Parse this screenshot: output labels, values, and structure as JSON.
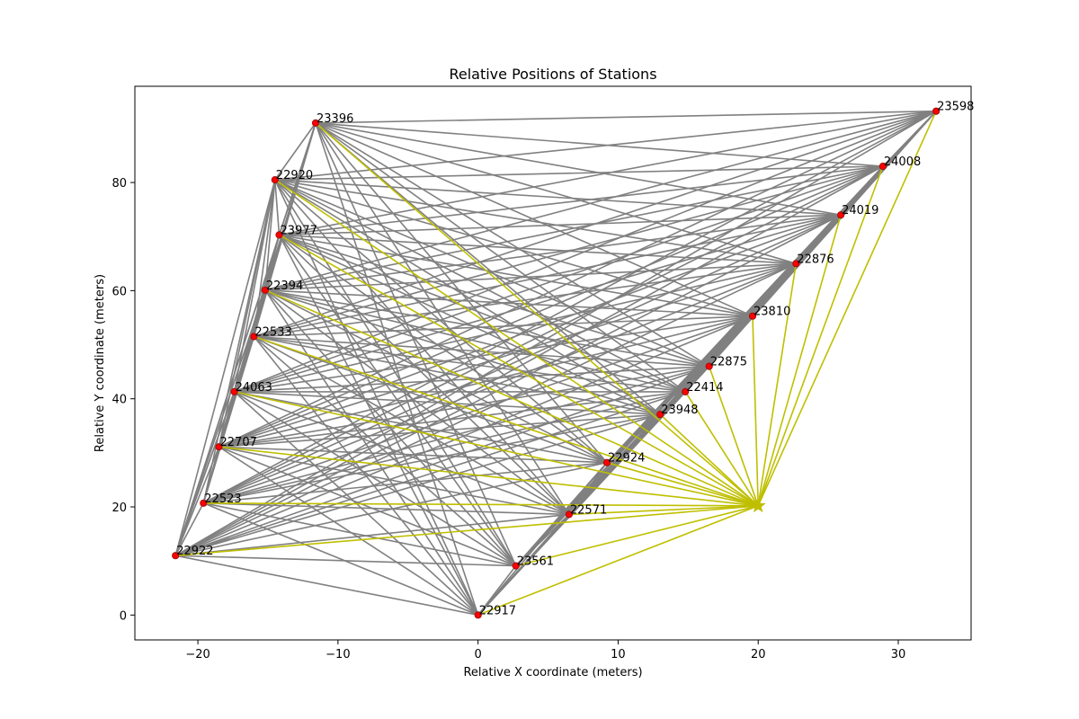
{
  "chart_data": {
    "type": "scatter",
    "title": "Relative Positions of Stations",
    "xlabel": "Relative X coordinate (meters)",
    "ylabel": "Relative Y coordinate (meters)",
    "xlim": [
      -24.5,
      35.2
    ],
    "ylim": [
      -4.6,
      97.8
    ],
    "xticks": [
      -20,
      -10,
      0,
      10,
      20,
      30
    ],
    "yticks": [
      0,
      20,
      40,
      60,
      80
    ],
    "grid": false,
    "colors": {
      "station_marker": "#ff0000",
      "station_marker_edge": "#a01010",
      "link_line": "#808080",
      "target_line": "#bfbf00",
      "target_marker": "#bfbf00"
    },
    "stations": [
      {
        "label": "23598",
        "x": 32.7,
        "y": 93.2
      },
      {
        "label": "24008",
        "x": 28.9,
        "y": 83.0
      },
      {
        "label": "24019",
        "x": 25.9,
        "y": 74.0
      },
      {
        "label": "22876",
        "x": 22.7,
        "y": 65.0
      },
      {
        "label": "23810",
        "x": 19.6,
        "y": 55.3
      },
      {
        "label": "22875",
        "x": 16.5,
        "y": 46.0
      },
      {
        "label": "22414",
        "x": 14.8,
        "y": 41.3
      },
      {
        "label": "23948",
        "x": 13.0,
        "y": 37.1
      },
      {
        "label": "22924",
        "x": 9.2,
        "y": 28.2
      },
      {
        "label": "22571",
        "x": 6.5,
        "y": 18.6
      },
      {
        "label": "23561",
        "x": 2.7,
        "y": 9.1
      },
      {
        "label": "22917",
        "x": 0.0,
        "y": 0.0
      },
      {
        "label": "22922",
        "x": -21.6,
        "y": 11.0
      },
      {
        "label": "22523",
        "x": -19.6,
        "y": 20.7
      },
      {
        "label": "22707",
        "x": -18.5,
        "y": 31.1
      },
      {
        "label": "24063",
        "x": -17.4,
        "y": 41.3
      },
      {
        "label": "22533",
        "x": -16.0,
        "y": 51.5
      },
      {
        "label": "22394",
        "x": -15.2,
        "y": 60.1
      },
      {
        "label": "23977",
        "x": -14.2,
        "y": 70.3
      },
      {
        "label": "22920",
        "x": -14.5,
        "y": 80.5
      },
      {
        "label": "23396",
        "x": -11.6,
        "y": 91.0
      }
    ],
    "target": {
      "x": 20.0,
      "y": 20.2,
      "marker": "star"
    },
    "links": "all station pairs connected",
    "target_links": "all stations connected to target"
  }
}
